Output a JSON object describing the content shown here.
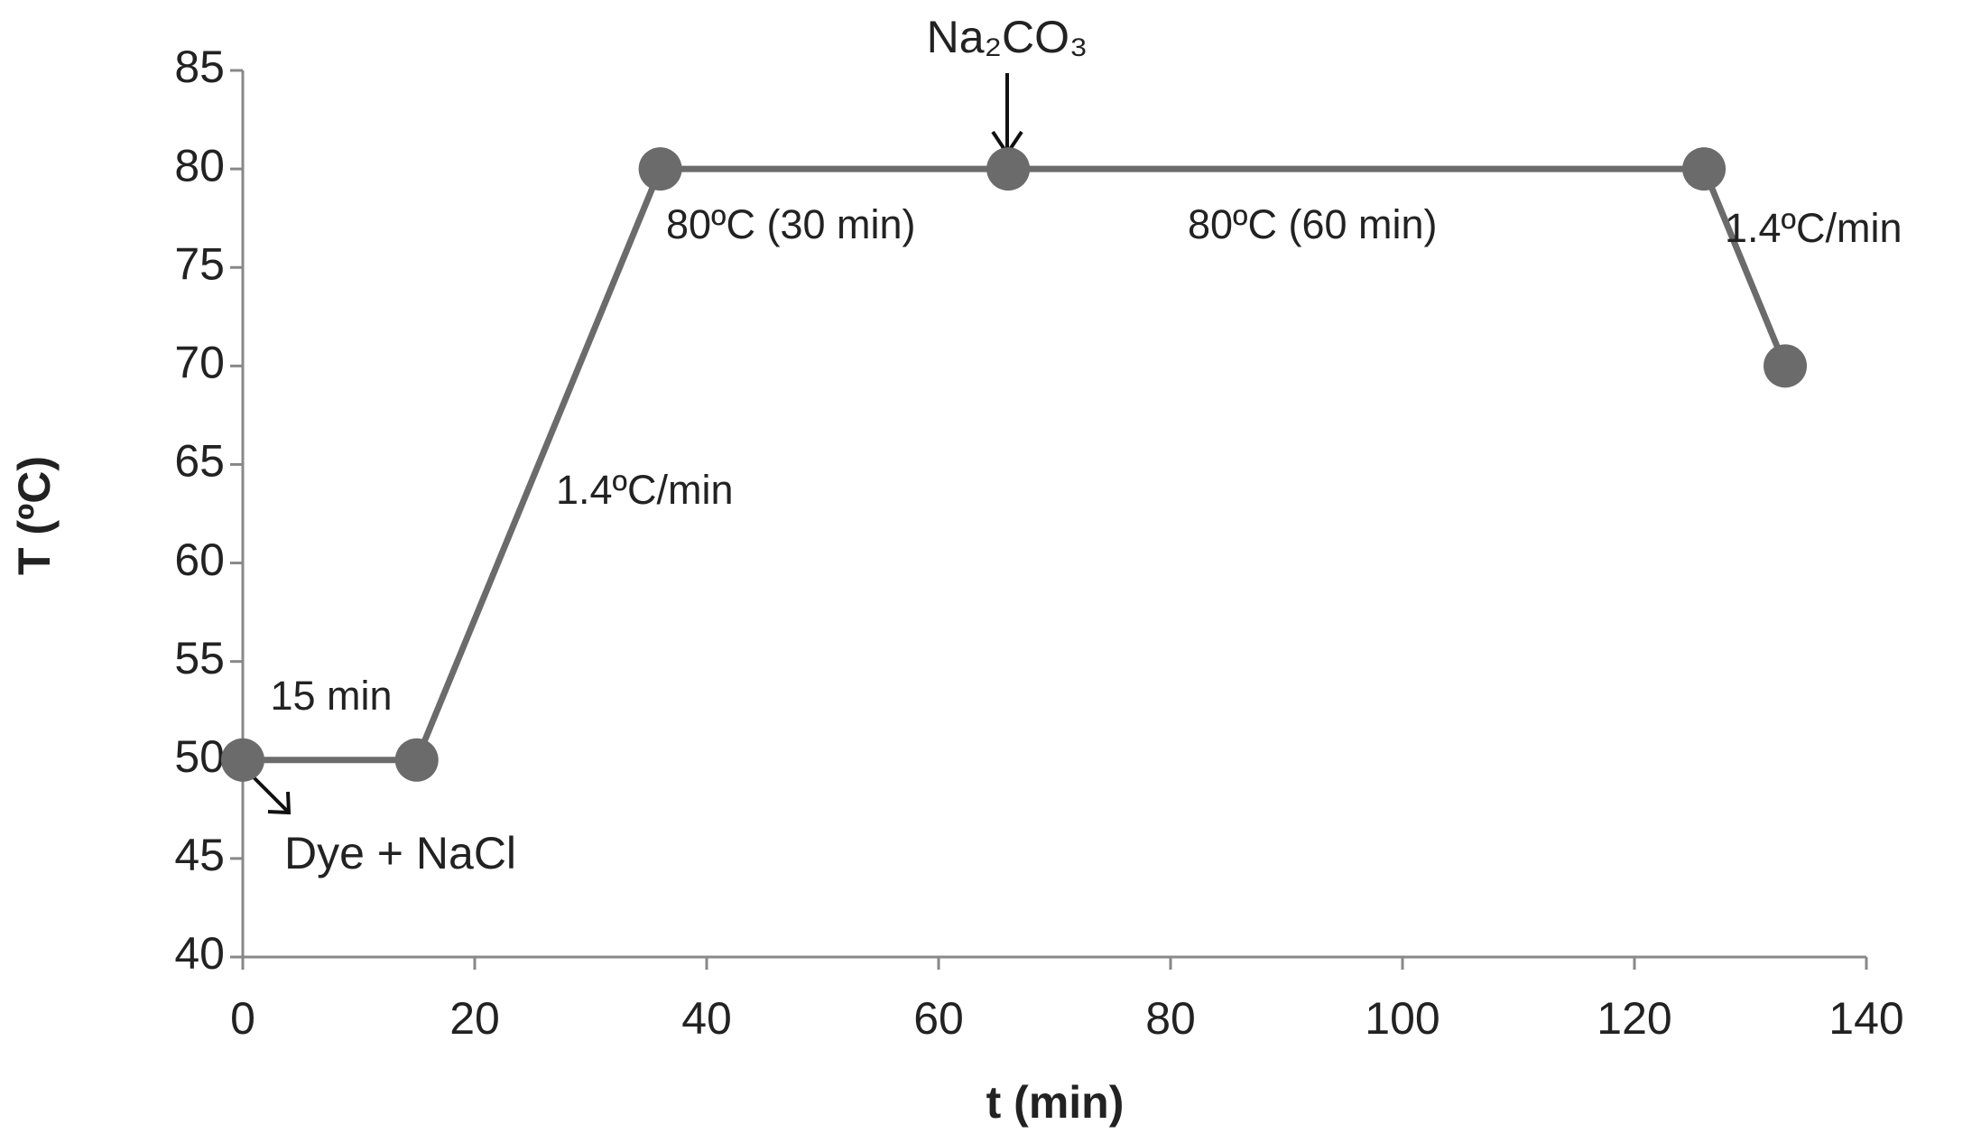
{
  "chart_data": {
    "type": "line",
    "xlabel": "t (min)",
    "ylabel": "T (ºC)",
    "x": [
      0,
      15,
      36,
      66,
      126,
      133
    ],
    "series": [
      {
        "color": "#6b6b6b",
        "values": [
          50,
          50,
          80,
          80,
          80,
          70
        ]
      }
    ],
    "xlim": [
      0,
      140
    ],
    "xticks": [
      0,
      20,
      40,
      60,
      80,
      100,
      120,
      140
    ],
    "ylim": [
      40,
      85
    ],
    "yticks": [
      40,
      45,
      50,
      55,
      60,
      65,
      70,
      75,
      80,
      85
    ],
    "grid": false,
    "annotations": [
      "15 min",
      "1.4ºC/min",
      "80ºC (30 min)",
      "80ºC (60 min)",
      "1.4ºC/min",
      "Na₂CO₃",
      "Dye + NaCl"
    ]
  }
}
